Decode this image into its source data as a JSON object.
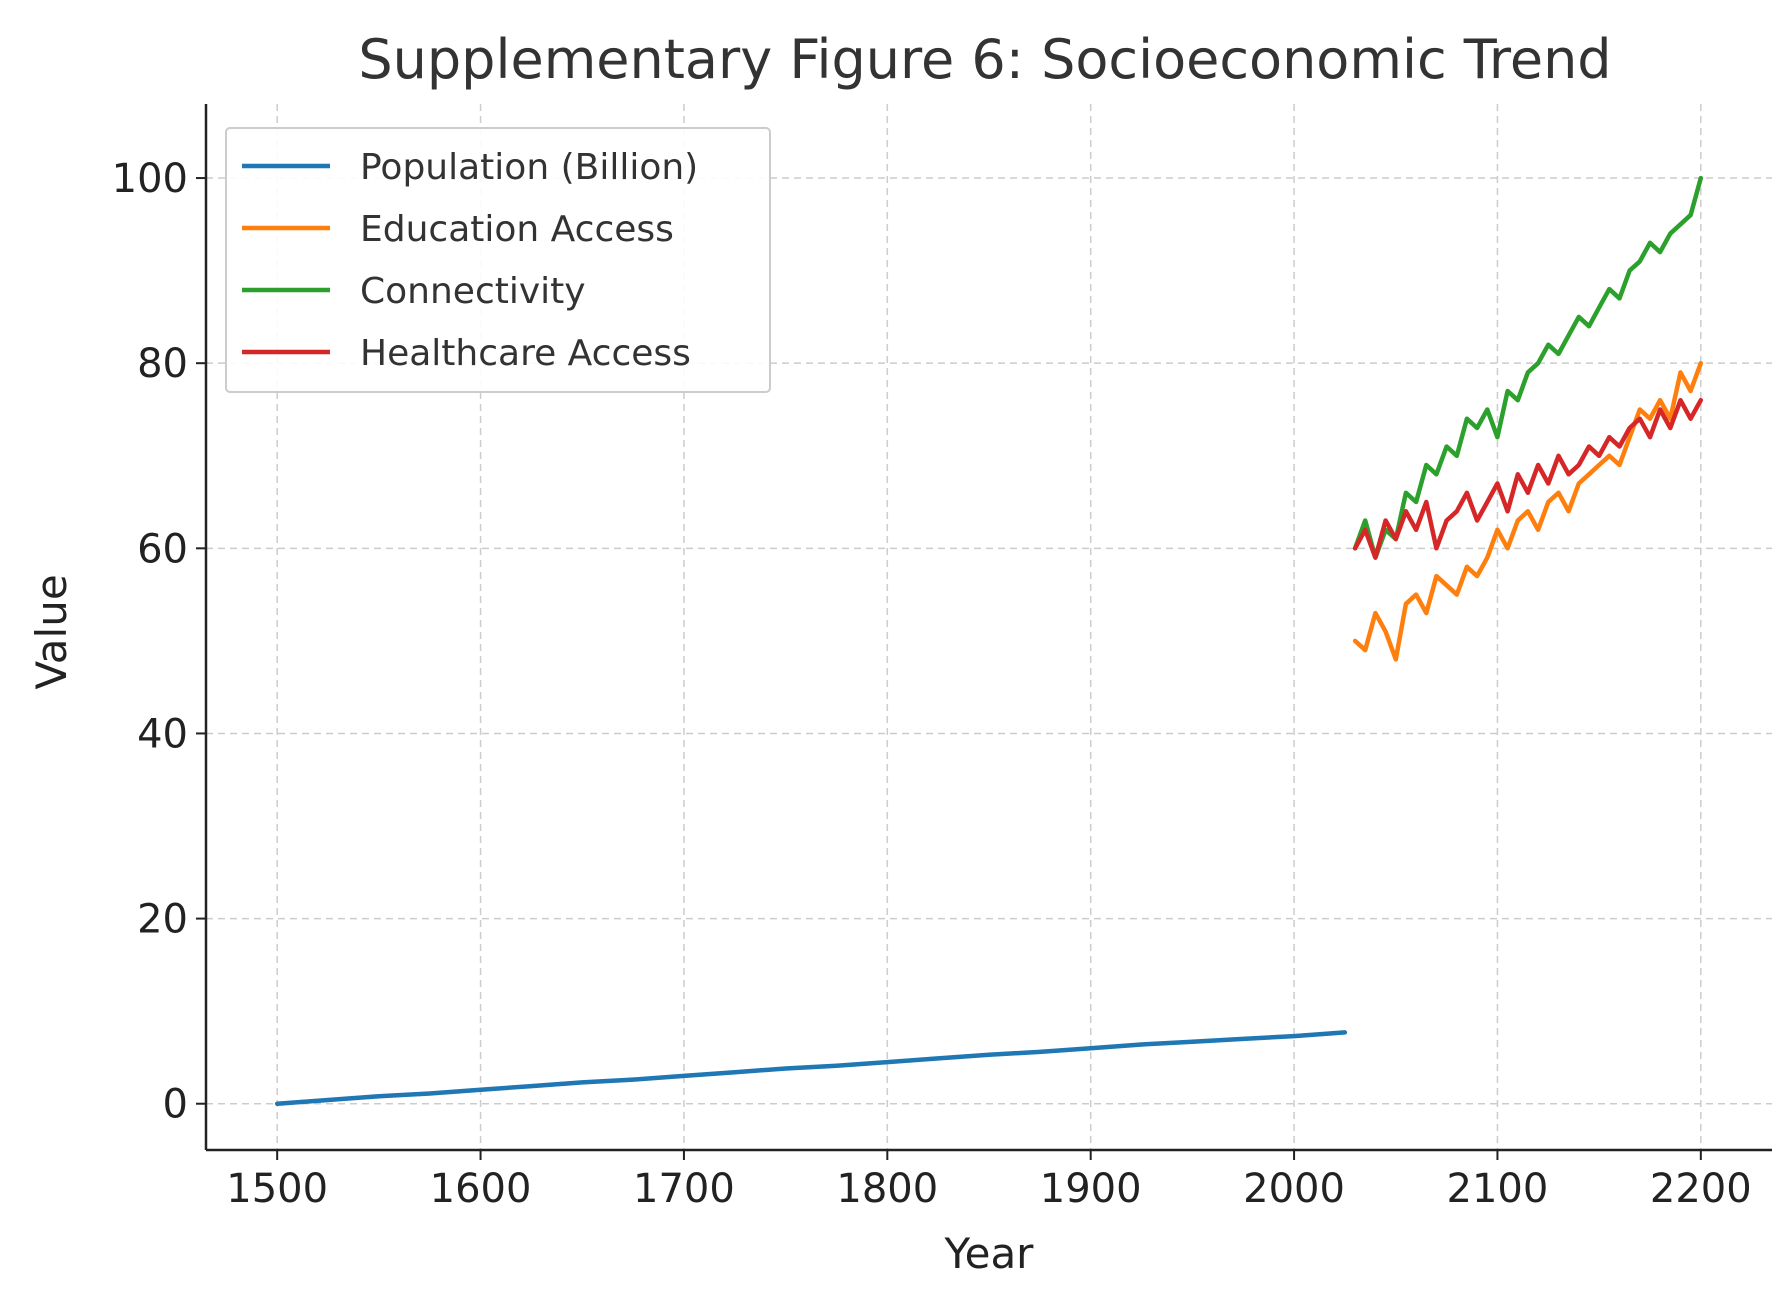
{
  "chart_data": {
    "type": "line",
    "title": "Supplementary Figure 6: Socioeconomic Trend",
    "xlabel": "Year",
    "ylabel": "Value",
    "xlim": [
      1465,
      2235
    ],
    "ylim": [
      -5,
      108
    ],
    "xticks": [
      1500,
      1600,
      1700,
      1800,
      1900,
      2000,
      2100,
      2200
    ],
    "yticks": [
      0,
      20,
      40,
      60,
      80,
      100
    ],
    "grid": true,
    "legend_position": "top-left",
    "series": [
      {
        "name": "Population (Billion)",
        "color": "#1f77b4",
        "x": [
          1500,
          1525,
          1550,
          1575,
          1600,
          1625,
          1650,
          1675,
          1700,
          1725,
          1750,
          1775,
          1800,
          1825,
          1850,
          1875,
          1900,
          1925,
          1950,
          1975,
          2000,
          2025
        ],
        "y": [
          0.0,
          0.4,
          0.8,
          1.1,
          1.5,
          1.9,
          2.3,
          2.6,
          3.0,
          3.4,
          3.8,
          4.1,
          4.5,
          4.9,
          5.3,
          5.6,
          6.0,
          6.4,
          6.7,
          7.0,
          7.3,
          7.7
        ]
      },
      {
        "name": "Education Access",
        "color": "#ff7f0e",
        "x": [
          2030,
          2035,
          2040,
          2045,
          2050,
          2055,
          2060,
          2065,
          2070,
          2075,
          2080,
          2085,
          2090,
          2095,
          2100,
          2105,
          2110,
          2115,
          2120,
          2125,
          2130,
          2135,
          2140,
          2145,
          2150,
          2155,
          2160,
          2165,
          2170,
          2175,
          2180,
          2185,
          2190,
          2195,
          2200
        ],
        "y": [
          50,
          49,
          53,
          51,
          48,
          54,
          55,
          53,
          57,
          56,
          55,
          58,
          57,
          59,
          62,
          60,
          63,
          64,
          62,
          65,
          66,
          64,
          67,
          68,
          69,
          70,
          69,
          72,
          75,
          74,
          76,
          74,
          79,
          77,
          80
        ]
      },
      {
        "name": "Connectivity",
        "color": "#2ca02c",
        "x": [
          2030,
          2035,
          2040,
          2045,
          2050,
          2055,
          2060,
          2065,
          2070,
          2075,
          2080,
          2085,
          2090,
          2095,
          2100,
          2105,
          2110,
          2115,
          2120,
          2125,
          2130,
          2135,
          2140,
          2145,
          2150,
          2155,
          2160,
          2165,
          2170,
          2175,
          2180,
          2185,
          2190,
          2195,
          2200
        ],
        "y": [
          60,
          63,
          59,
          62,
          61,
          66,
          65,
          69,
          68,
          71,
          70,
          74,
          73,
          75,
          72,
          77,
          76,
          79,
          80,
          82,
          81,
          83,
          85,
          84,
          86,
          88,
          87,
          90,
          91,
          93,
          92,
          94,
          95,
          96,
          100
        ]
      },
      {
        "name": "Healthcare Access",
        "color": "#d62728",
        "x": [
          2030,
          2035,
          2040,
          2045,
          2050,
          2055,
          2060,
          2065,
          2070,
          2075,
          2080,
          2085,
          2090,
          2095,
          2100,
          2105,
          2110,
          2115,
          2120,
          2125,
          2130,
          2135,
          2140,
          2145,
          2150,
          2155,
          2160,
          2165,
          2170,
          2175,
          2180,
          2185,
          2190,
          2195,
          2200
        ],
        "y": [
          60,
          62,
          59,
          63,
          61,
          64,
          62,
          65,
          60,
          63,
          64,
          66,
          63,
          65,
          67,
          64,
          68,
          66,
          69,
          67,
          70,
          68,
          69,
          71,
          70,
          72,
          71,
          73,
          74,
          72,
          75,
          73,
          76,
          74,
          76
        ]
      }
    ]
  }
}
